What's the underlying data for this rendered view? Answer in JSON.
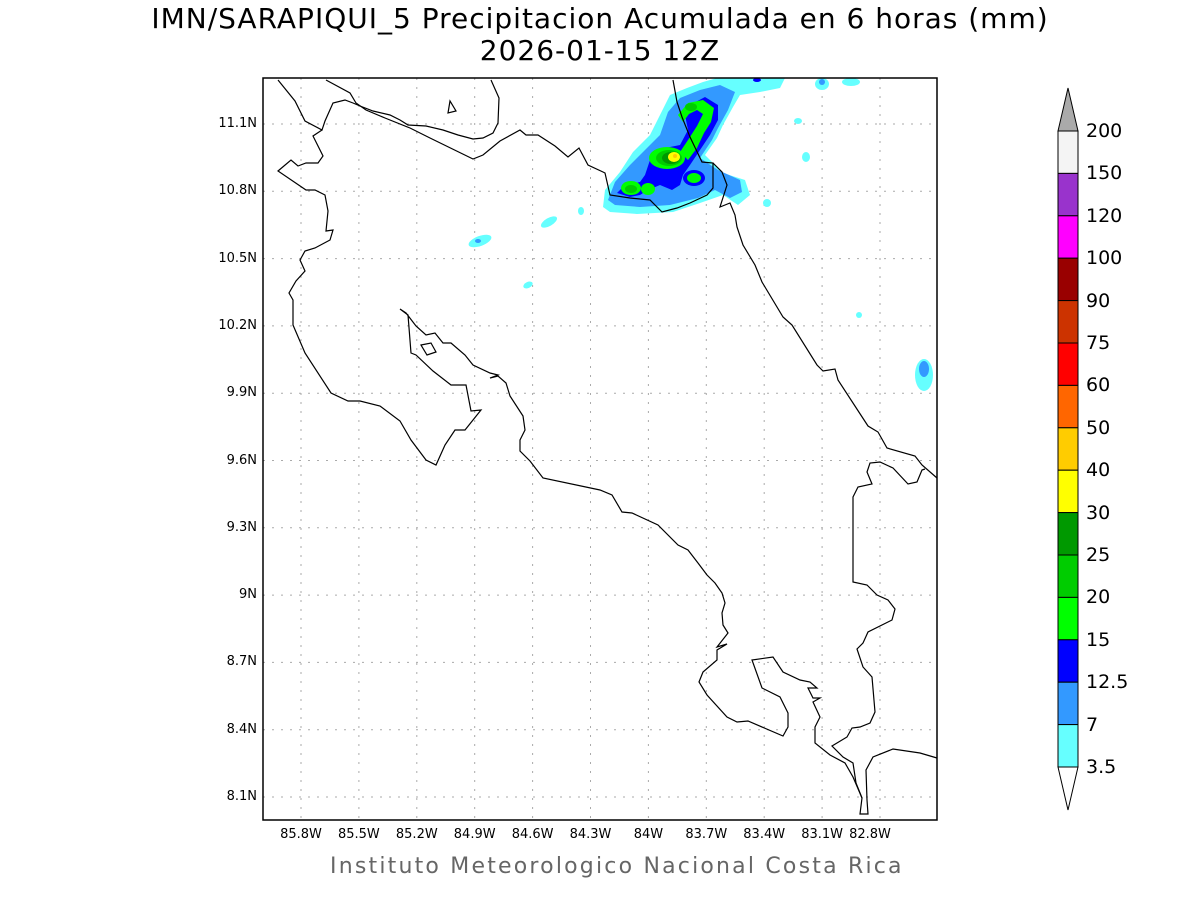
{
  "title": "IMN/SARAPIQUI_5 Precipitacion Acumulada en 6 horas (mm)",
  "subtitle": "2026-01-15 12Z",
  "footer": "Instituto Meteorologico Nacional Costa Rica",
  "map": {
    "extent": {
      "lon_west": 86.0,
      "lon_east": 82.5,
      "lat_south": 8.0,
      "lat_north": 11.3
    },
    "grid": "dotted",
    "lat_labels": [
      "11.1N",
      "10.8N",
      "10.5N",
      "10.2N",
      "9.9N",
      "9.6N",
      "9.3N",
      "9N",
      "8.7N",
      "8.4N",
      "8.1N"
    ],
    "lon_labels": [
      "85.8W",
      "85.5W",
      "85.2W",
      "84.9W",
      "84.6W",
      "84.3W",
      "84W",
      "83.7W",
      "83.4W",
      "83.1W",
      "82.8W"
    ],
    "max_feature": "precipitation maximum 30-40 mm near 83.85W 10.95N"
  },
  "colorbar": {
    "labels": [
      "200",
      "150",
      "120",
      "100",
      "90",
      "75",
      "60",
      "50",
      "40",
      "30",
      "25",
      "20",
      "15",
      "12.5",
      "7",
      "3.5"
    ],
    "colors": [
      "#f4f4f4",
      "#9933cc",
      "#ff00ff",
      "#990000",
      "#cc3300",
      "#ff0000",
      "#ff6600",
      "#ffcc00",
      "#ffff00",
      "#009900",
      "#00cc00",
      "#00ff00",
      "#0000ff",
      "#3399ff",
      "#66ffff"
    ],
    "over_color": "#aaaaaa",
    "under_color": "#ffffff"
  }
}
